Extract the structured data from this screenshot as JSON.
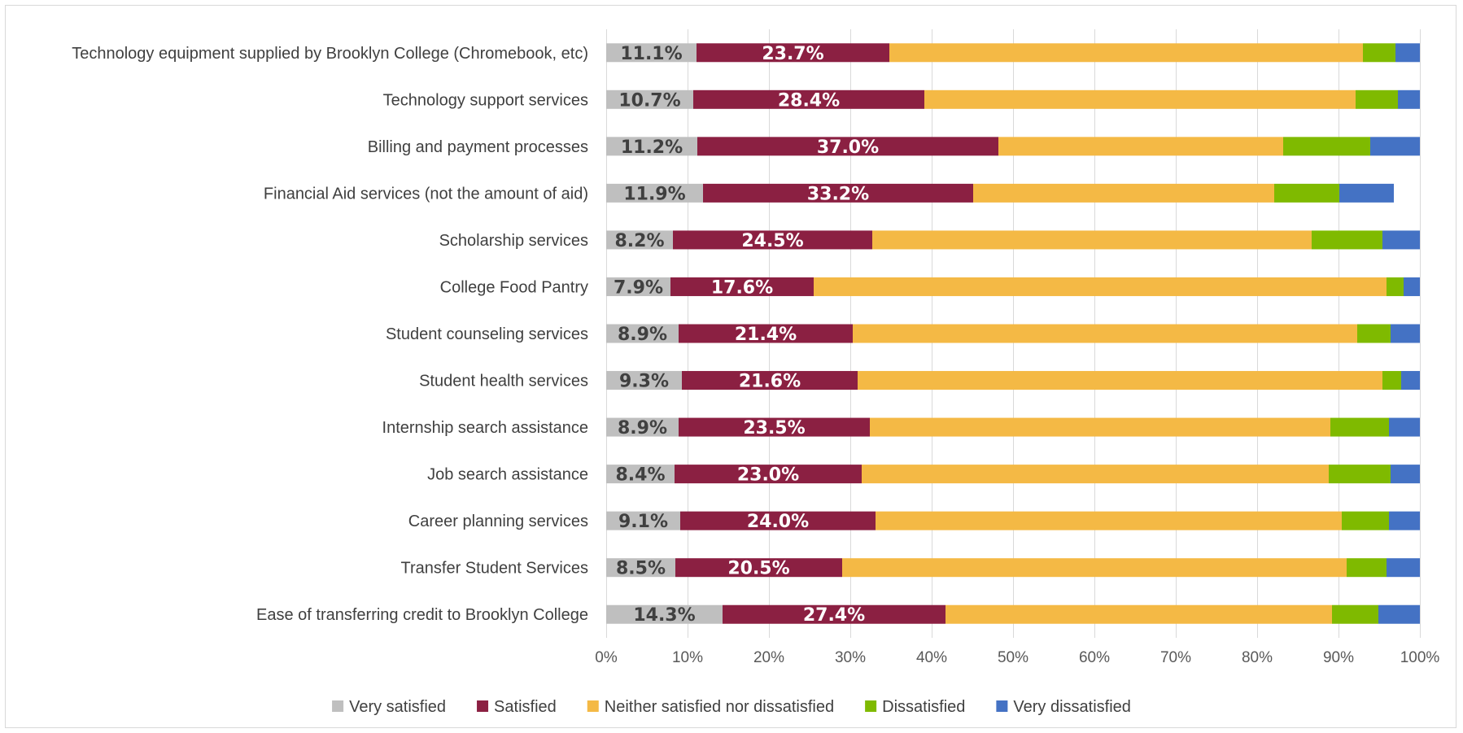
{
  "chart_data": {
    "type": "bar",
    "orientation": "horizontal",
    "stacked": "percent",
    "categories": [
      "Technology equipment supplied by Brooklyn College (Chromebook, etc)",
      "Technology support services",
      "Billing and payment processes",
      "Financial Aid services (not the amount of aid)",
      "Scholarship services",
      "College Food Pantry",
      "Student counseling services",
      "Student health services",
      "Internship search assistance",
      "Job search assistance",
      "Career planning services",
      "Transfer Student Services",
      "Ease of transferring credit to Brooklyn College"
    ],
    "series": [
      {
        "name": "Very satisfied",
        "color": "#bfbfbf",
        "label_color": "#404040",
        "values": [
          11.1,
          10.7,
          11.2,
          11.9,
          8.2,
          7.9,
          8.9,
          9.3,
          8.9,
          8.4,
          9.1,
          8.5,
          14.3
        ],
        "labels": [
          "11.1%",
          "10.7%",
          "11.2%",
          "11.9%",
          "8.2%",
          "7.9%",
          "8.9%",
          "9.3%",
          "8.9%",
          "8.4%",
          "9.1%",
          "8.5%",
          "14.3%"
        ]
      },
      {
        "name": "Satisfied",
        "color": "#8b2042",
        "label_color": "#ffffff",
        "values": [
          23.7,
          28.4,
          37.0,
          33.2,
          24.5,
          17.6,
          21.4,
          21.6,
          23.5,
          23.0,
          24.0,
          20.5,
          27.4
        ],
        "labels": [
          "23.7%",
          "28.4%",
          "37.0%",
          "33.2%",
          "24.5%",
          "17.6%",
          "21.4%",
          "21.6%",
          "23.5%",
          "23.0%",
          "24.0%",
          "20.5%",
          "27.4%"
        ]
      },
      {
        "name": "Neither satisfied nor dissatisfied",
        "color": "#f4b945",
        "values": [
          58.2,
          53.0,
          35.0,
          37.0,
          54.0,
          70.4,
          62.0,
          64.5,
          56.6,
          57.4,
          57.3,
          62.0,
          47.5
        ]
      },
      {
        "name": "Dissatisfied",
        "color": "#7fba00",
        "values": [
          4.0,
          5.2,
          10.7,
          8.0,
          8.7,
          2.1,
          4.1,
          2.3,
          7.2,
          7.6,
          5.8,
          4.9,
          5.7
        ]
      },
      {
        "name": "Very dissatisfied",
        "color": "#4472c4",
        "values": [
          3.0,
          2.7,
          6.1,
          6.7,
          4.6,
          2.0,
          3.6,
          2.3,
          3.8,
          3.6,
          3.8,
          4.1,
          5.1
        ]
      }
    ],
    "xlim": [
      0,
      100
    ],
    "x_ticks": [
      "0%",
      "10%",
      "20%",
      "30%",
      "40%",
      "50%",
      "60%",
      "70%",
      "80%",
      "90%",
      "100%"
    ],
    "grid": "vertical",
    "legend_position": "bottom"
  }
}
